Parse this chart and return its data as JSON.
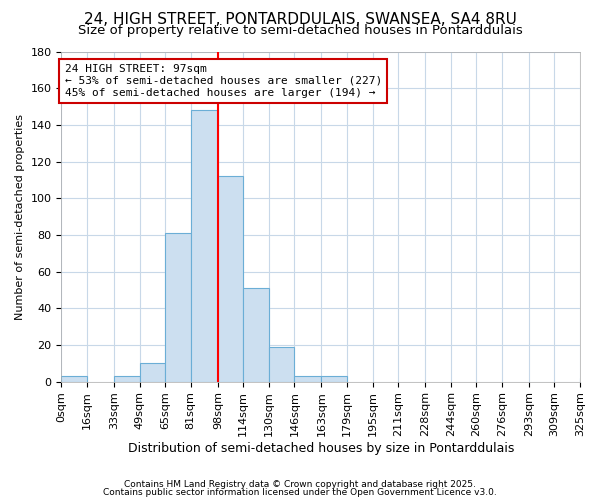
{
  "title1": "24, HIGH STREET, PONTARDDULAIS, SWANSEA, SA4 8RU",
  "title2": "Size of property relative to semi-detached houses in Pontarddulais",
  "xlabel": "Distribution of semi-detached houses by size in Pontarddulais",
  "ylabel": "Number of semi-detached properties",
  "footer1": "Contains HM Land Registry data © Crown copyright and database right 2025.",
  "footer2": "Contains public sector information licensed under the Open Government Licence v3.0.",
  "bar_edges": [
    0,
    16,
    33,
    49,
    65,
    81,
    98,
    114,
    130,
    146,
    163,
    179,
    195,
    211,
    228,
    244,
    260,
    276,
    293,
    309,
    325
  ],
  "bar_labels": [
    "0sqm",
    "16sqm",
    "33sqm",
    "49sqm",
    "65sqm",
    "81sqm",
    "98sqm",
    "114sqm",
    "130sqm",
    "146sqm",
    "163sqm",
    "179sqm",
    "195sqm",
    "211sqm",
    "228sqm",
    "244sqm",
    "260sqm",
    "276sqm",
    "293sqm",
    "309sqm",
    "325sqm"
  ],
  "bar_heights": [
    3,
    0,
    3,
    10,
    81,
    148,
    112,
    51,
    19,
    3,
    3,
    0,
    0,
    0,
    0,
    0,
    0,
    0,
    0,
    0,
    2
  ],
  "bar_color": "#ccdff0",
  "bar_edgecolor": "#6baed6",
  "red_line_x": 98,
  "annotation_text": "24 HIGH STREET: 97sqm\n← 53% of semi-detached houses are smaller (227)\n45% of semi-detached houses are larger (194) →",
  "annotation_box_facecolor": "#ffffff",
  "annotation_box_edgecolor": "#cc0000",
  "ylim": [
    0,
    180
  ],
  "yticks": [
    0,
    20,
    40,
    60,
    80,
    100,
    120,
    140,
    160,
    180
  ],
  "bg_color": "#ffffff",
  "grid_color": "#c8d8e8",
  "title_fontsize": 11,
  "subtitle_fontsize": 9.5,
  "tick_fontsize": 8,
  "ylabel_fontsize": 8,
  "xlabel_fontsize": 9
}
